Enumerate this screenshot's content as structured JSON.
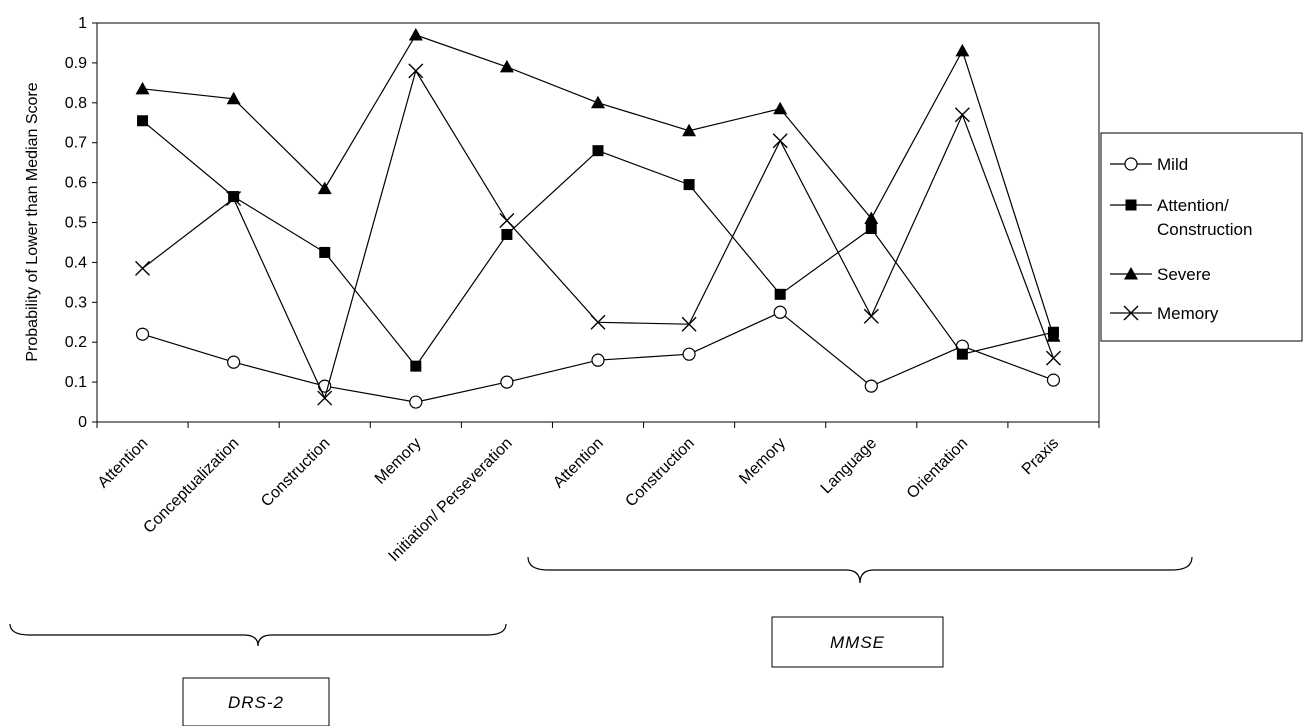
{
  "chart_data": {
    "type": "line",
    "title": "",
    "xlabel": "",
    "ylabel": "Probability of Lower than Median Score",
    "ylim": [
      0,
      1
    ],
    "yticks": [
      "0",
      "0.1",
      "0.2",
      "0.3",
      "0.4",
      "0.5",
      "0.6",
      "0.7",
      "0.8",
      "0.9",
      "1"
    ],
    "grid": false,
    "legend_position": "right",
    "categories": [
      "Attention",
      "Conceptualization",
      "Construction",
      "Memory",
      "Initiation/ Perseveration",
      "Attention",
      "Construction",
      "Memory",
      "Language",
      "Orientation",
      "Praxis"
    ],
    "groups": [
      {
        "label": "DRS-2",
        "first_category": 0,
        "last_category": 4
      },
      {
        "label": "MMSE",
        "first_category": 5,
        "last_category": 10
      }
    ],
    "series": [
      {
        "name": "Mild",
        "marker": "open-circle",
        "values": [
          0.22,
          0.15,
          0.09,
          0.05,
          0.1,
          0.155,
          0.17,
          0.275,
          0.09,
          0.19,
          0.105
        ]
      },
      {
        "name": "Attention/ Construction",
        "marker": "filled-square",
        "values": [
          0.755,
          0.565,
          0.425,
          0.14,
          0.47,
          0.68,
          0.595,
          0.32,
          0.485,
          0.17,
          0.225
        ]
      },
      {
        "name": "Severe",
        "marker": "filled-triangle",
        "values": [
          0.835,
          0.81,
          0.585,
          0.97,
          0.89,
          0.8,
          0.73,
          0.785,
          0.51,
          0.93,
          0.215
        ]
      },
      {
        "name": "Memory",
        "marker": "cross",
        "values": [
          0.385,
          0.56,
          0.06,
          0.88,
          0.505,
          0.25,
          0.245,
          0.705,
          0.265,
          0.77,
          0.16
        ]
      }
    ]
  }
}
